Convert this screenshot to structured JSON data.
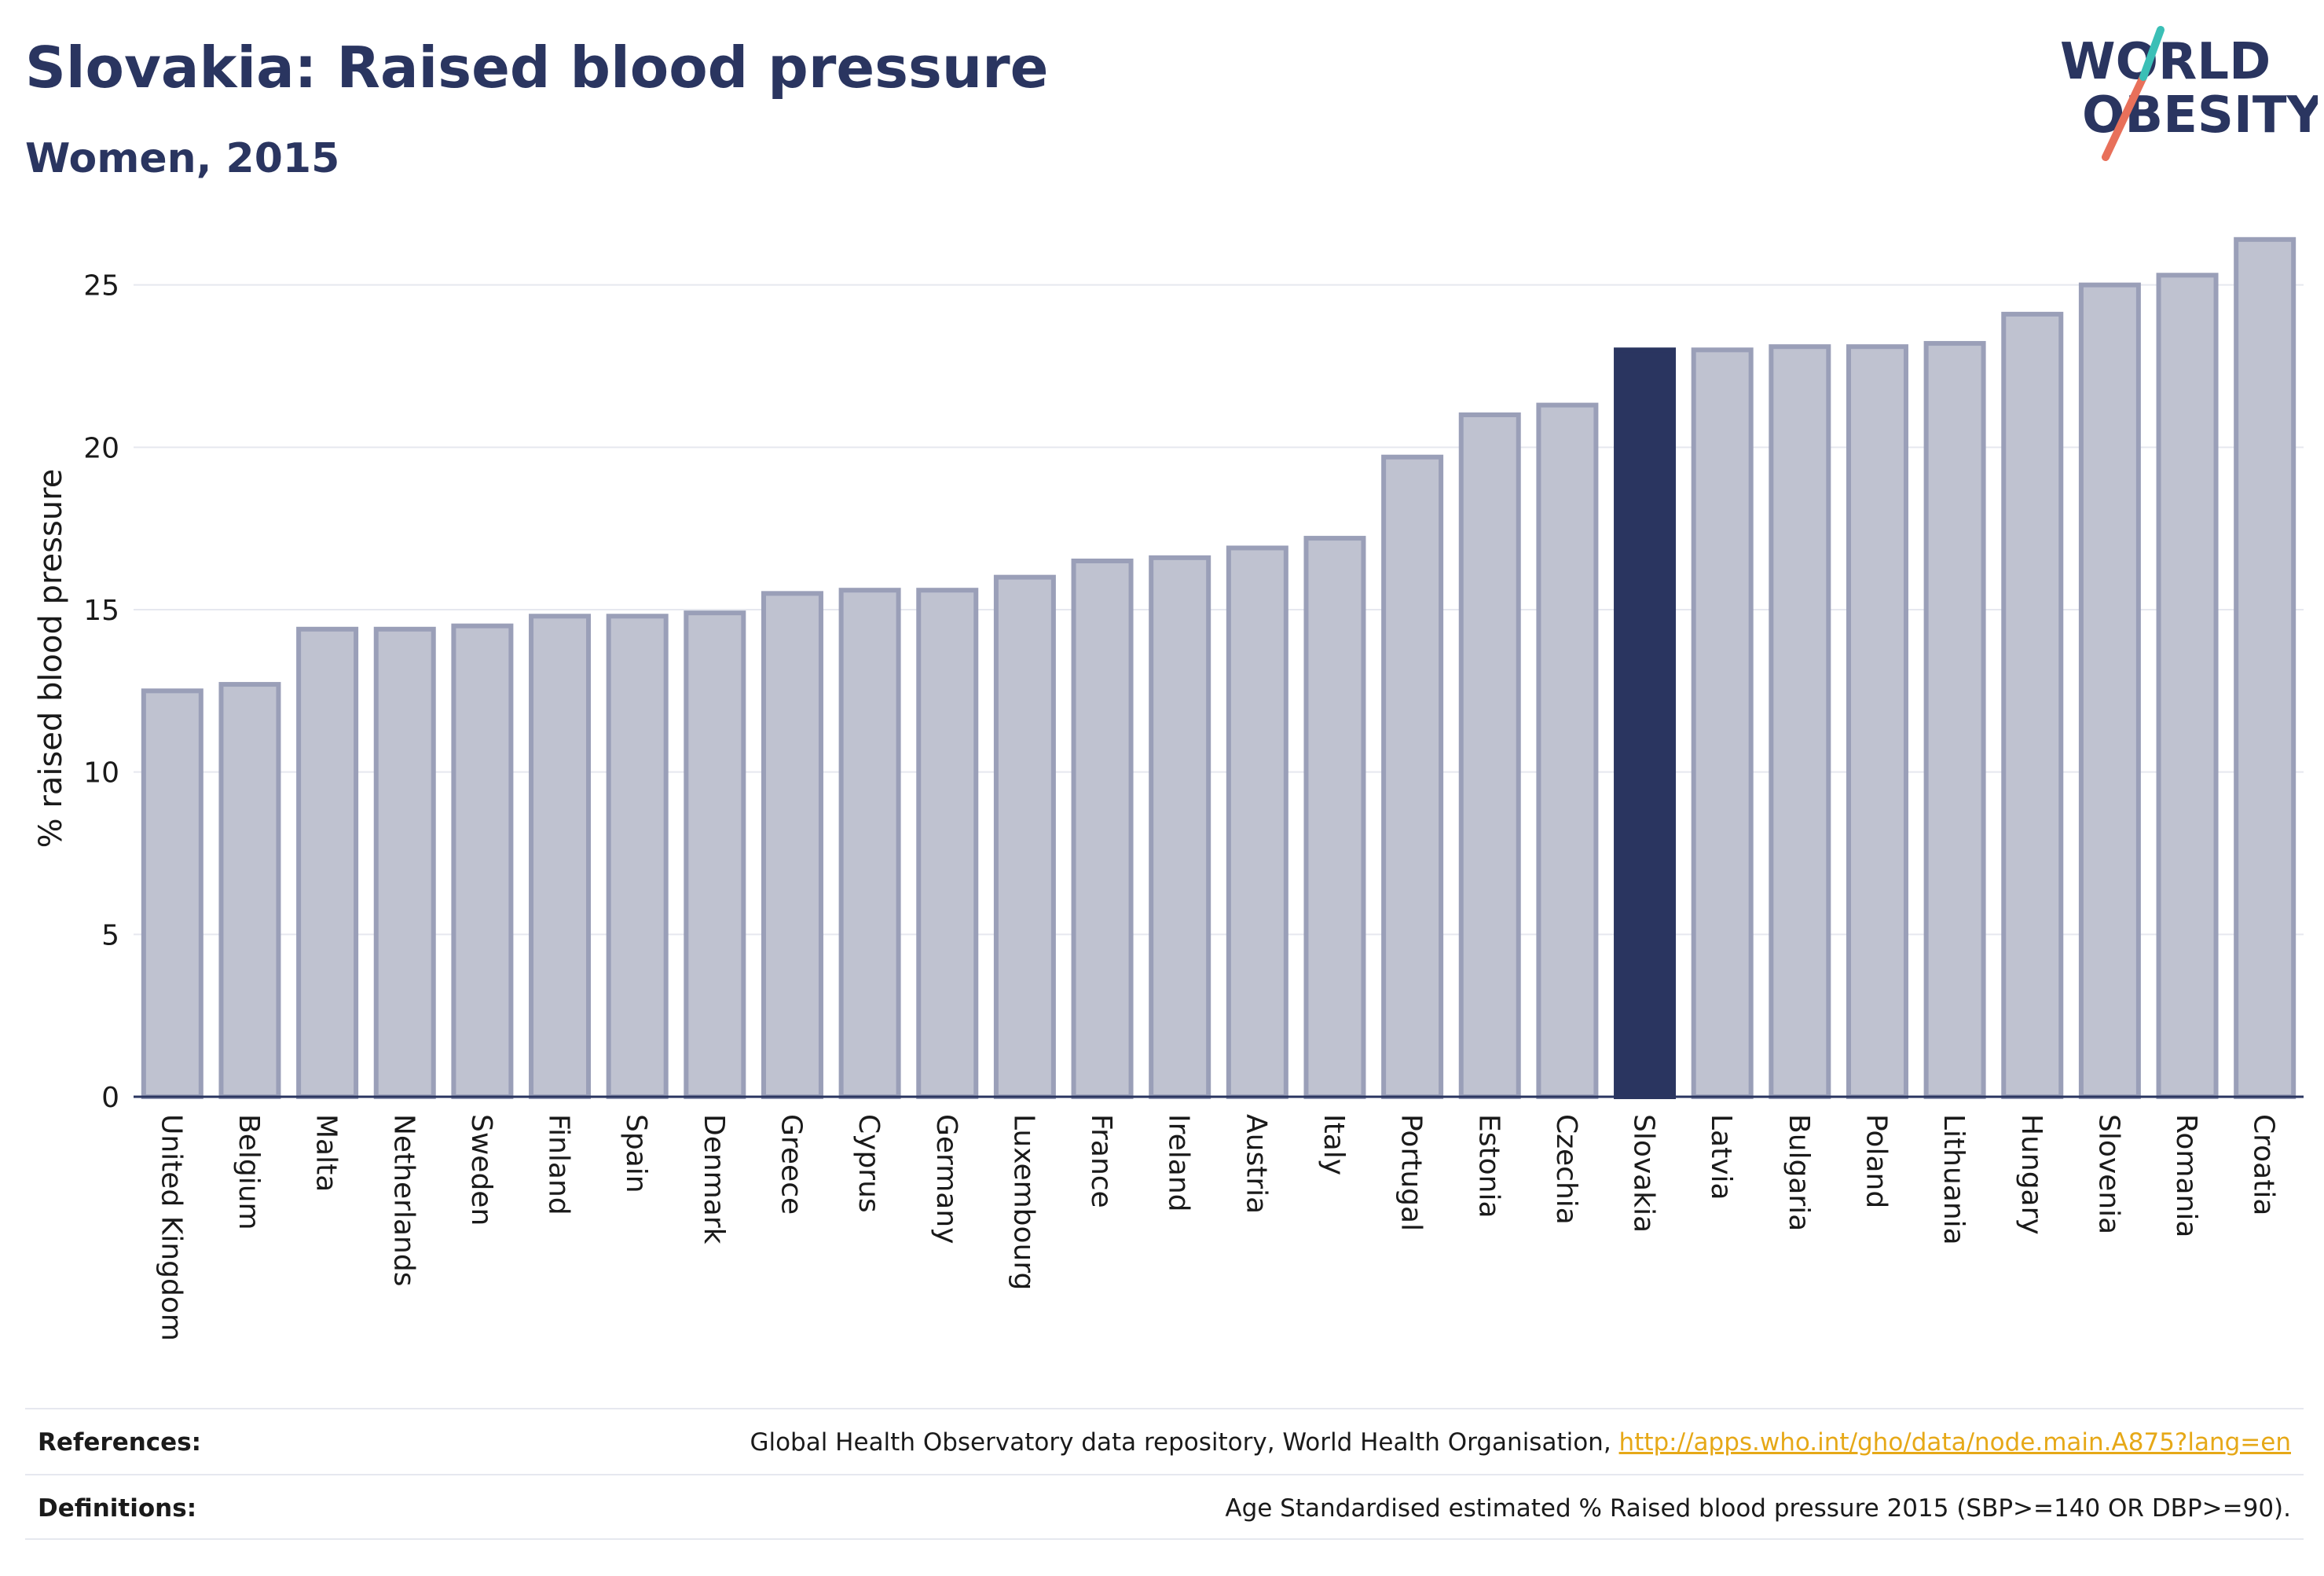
{
  "title": "Slovakia: Raised blood pressure",
  "subtitle": "Women, 2015",
  "logo": {
    "line1": "WORLD",
    "line2": "OBESITY"
  },
  "colors": {
    "highlight": "#2a3560",
    "bar_fill": "#bfc2d0",
    "bar_stroke": "#9a9fb8",
    "text": "#2a3560",
    "link": "#e6a817"
  },
  "chart_data": {
    "type": "bar",
    "title": "Slovakia: Raised blood pressure",
    "subtitle": "Women, 2015",
    "ylabel": "% raised blood pressure",
    "xlabel": "",
    "ylim": [
      0,
      27
    ],
    "yticks": [
      0,
      5,
      10,
      15,
      20,
      25
    ],
    "grid": true,
    "highlight": "Slovakia",
    "categories": [
      "United Kingdom",
      "Belgium",
      "Malta",
      "Netherlands",
      "Sweden",
      "Finland",
      "Spain",
      "Denmark",
      "Greece",
      "Cyprus",
      "Germany",
      "Luxembourg",
      "France",
      "Ireland",
      "Austria",
      "Italy",
      "Portugal",
      "Estonia",
      "Czechia",
      "Slovakia",
      "Latvia",
      "Bulgaria",
      "Poland",
      "Lithuania",
      "Hungary",
      "Slovenia",
      "Romania",
      "Croatia"
    ],
    "values": [
      12.5,
      12.7,
      14.4,
      14.4,
      14.5,
      14.8,
      14.8,
      14.9,
      15.5,
      15.6,
      15.6,
      16.0,
      16.5,
      16.6,
      16.9,
      17.2,
      19.7,
      21.0,
      21.3,
      23.0,
      23.0,
      23.1,
      23.1,
      23.2,
      24.1,
      25.0,
      25.3,
      26.4
    ]
  },
  "footer": {
    "references_label": "References:",
    "references_text": "Global Health Observatory data repository, World Health Organisation,",
    "references_link": "http://apps.who.int/gho/data/node.main.A875?lang=en",
    "definitions_label": "Definitions:",
    "definitions_text": "Age Standardised estimated % Raised blood pressure 2015 (SBP>=140 OR DBP>=90)."
  }
}
